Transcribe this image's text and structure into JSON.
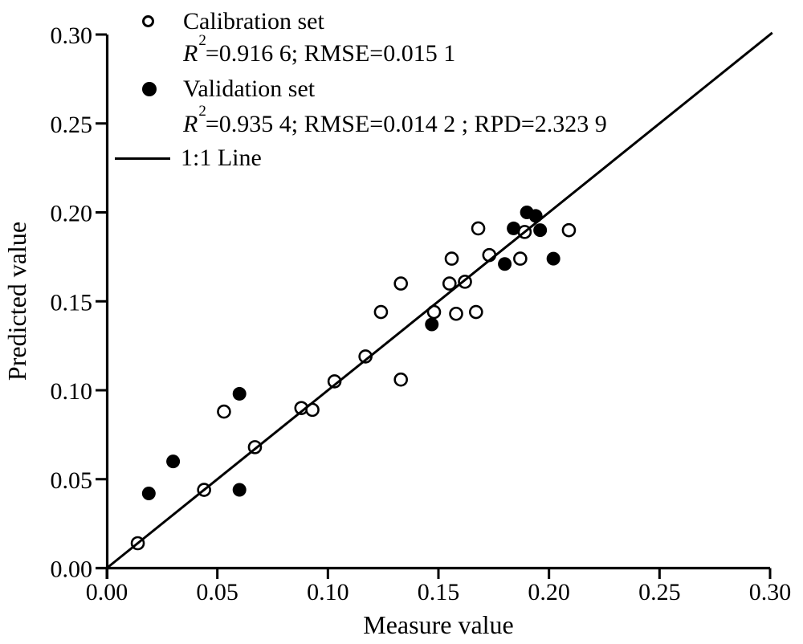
{
  "figure": {
    "background": "#ffffff",
    "ink": "#000000"
  },
  "legend": {
    "calibration_label": "Calibration set",
    "calibration_stats": {
      "var": "R",
      "sup": "2",
      "rest": "=0.916 6; RMSE=0.015 1"
    },
    "validation_label": "Validation set",
    "validation_stats": {
      "var": "R",
      "sup": "2",
      "rest": "=0.935 4; RMSE=0.014 2 ; RPD=2.323 9"
    },
    "line_label": "1:1 Line"
  },
  "chart_data": {
    "type": "scatter",
    "title": "",
    "xlabel": "Measure value",
    "ylabel": "Predicted value",
    "xlim": [
      0,
      0.3
    ],
    "ylim": [
      0,
      0.3
    ],
    "grid": false,
    "legend_position": "top-left-inside",
    "x_tick_values": [
      0,
      0.05,
      0.1,
      0.15,
      0.2,
      0.25,
      0.3
    ],
    "y_tick_values": [
      0,
      0.05,
      0.1,
      0.15,
      0.2,
      0.25,
      0.3
    ],
    "x_tick_labels": [
      "0.00",
      "0.05",
      "0.10",
      "0.15",
      "0.20",
      "0.25",
      "0.30"
    ],
    "y_tick_labels": [
      "0.00",
      "0.05",
      "0.10",
      "0.15",
      "0.20",
      "0.25",
      "0.30"
    ],
    "series": [
      {
        "name": "Calibration set",
        "marker": "open-circle",
        "R2": "0.916 6",
        "RMSE": "0.015 1",
        "points": [
          [
            0.014,
            0.014
          ],
          [
            0.044,
            0.044
          ],
          [
            0.053,
            0.088
          ],
          [
            0.067,
            0.068
          ],
          [
            0.088,
            0.09
          ],
          [
            0.093,
            0.089
          ],
          [
            0.103,
            0.105
          ],
          [
            0.117,
            0.119
          ],
          [
            0.124,
            0.144
          ],
          [
            0.133,
            0.106
          ],
          [
            0.133,
            0.16
          ],
          [
            0.148,
            0.144
          ],
          [
            0.155,
            0.16
          ],
          [
            0.156,
            0.174
          ],
          [
            0.158,
            0.143
          ],
          [
            0.162,
            0.161
          ],
          [
            0.167,
            0.144
          ],
          [
            0.168,
            0.191
          ],
          [
            0.173,
            0.176
          ],
          [
            0.187,
            0.174
          ],
          [
            0.189,
            0.189
          ],
          [
            0.209,
            0.19
          ]
        ]
      },
      {
        "name": "Validation set",
        "marker": "filled-circle",
        "R2": "0.935 4",
        "RMSE": "0.014 2",
        "RPD": "2.323 9",
        "points": [
          [
            0.019,
            0.042
          ],
          [
            0.03,
            0.06
          ],
          [
            0.06,
            0.044
          ],
          [
            0.06,
            0.098
          ],
          [
            0.147,
            0.137
          ],
          [
            0.18,
            0.171
          ],
          [
            0.184,
            0.191
          ],
          [
            0.19,
            0.2
          ],
          [
            0.194,
            0.198
          ],
          [
            0.196,
            0.19
          ],
          [
            0.202,
            0.174
          ]
        ]
      }
    ],
    "reference_line": {
      "name": "1:1 Line",
      "x": [
        0,
        0.301
      ],
      "y": [
        0,
        0.301
      ]
    }
  }
}
